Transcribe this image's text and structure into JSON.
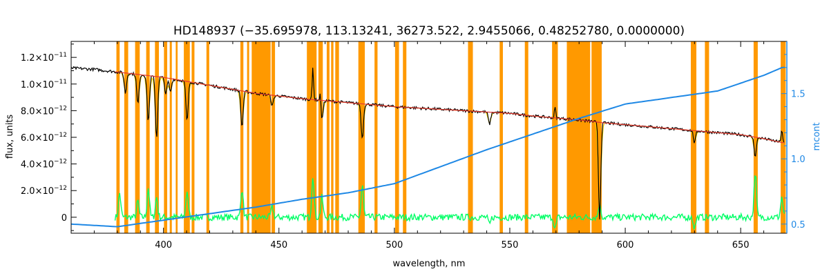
{
  "chart_data": {
    "type": "line",
    "title": "HD148937    (−35.695978, 113.13241, 36273.522, 2.9455066, 0.48252780, 0.0000000)",
    "xlabel": "wavelength, nm",
    "ylabel": "flux, units",
    "y2label": "mcont",
    "xlim": [
      360,
      670
    ],
    "ylim": [
      -1.2e-12,
      1.32e-11
    ],
    "y2lim": [
      0.43,
      1.9
    ],
    "x_ticks": [
      400,
      450,
      500,
      550,
      600,
      650
    ],
    "y_ticks": [
      {
        "value": 0,
        "label": "0",
        "sup": ""
      },
      {
        "value": 2e-12,
        "label": "2.0×10",
        "sup": "−12"
      },
      {
        "value": 4e-12,
        "label": "4.0×10",
        "sup": "−12"
      },
      {
        "value": 6e-12,
        "label": "6.0×10",
        "sup": "−12"
      },
      {
        "value": 8e-12,
        "label": "8.0×10",
        "sup": "−12"
      },
      {
        "value": 1e-11,
        "label": "1.0×10",
        "sup": "−11"
      },
      {
        "value": 1.2e-11,
        "label": "1.2×10",
        "sup": "−11"
      }
    ],
    "y2_ticks": [
      {
        "value": 0.5,
        "label": "0.5"
      },
      {
        "value": 1.0,
        "label": "1.0"
      },
      {
        "value": 1.5,
        "label": "1.5"
      }
    ],
    "masked_bands_nm": [
      [
        379.6,
        381.0
      ],
      [
        383.0,
        384.7
      ],
      [
        387.7,
        389.7
      ],
      [
        392.5,
        394.0
      ],
      [
        396.3,
        398.0
      ],
      [
        400.2,
        401.6
      ],
      [
        402.7,
        403.6
      ],
      [
        405.3,
        406.1
      ],
      [
        408.8,
        411.4
      ],
      [
        412.2,
        413.4
      ],
      [
        418.6,
        419.8
      ],
      [
        433.3,
        434.6
      ],
      [
        436.2,
        437.1
      ],
      [
        438.2,
        446.4
      ],
      [
        446.8,
        448.3
      ],
      [
        462.1,
        466.3
      ],
      [
        467.1,
        469.0
      ],
      [
        470.7,
        471.9
      ],
      [
        472.6,
        473.6
      ],
      [
        474.4,
        476.0
      ],
      [
        484.4,
        487.2
      ],
      [
        491.4,
        492.7
      ],
      [
        500.3,
        502.0
      ],
      [
        503.7,
        505.2
      ],
      [
        531.9,
        534.0
      ],
      [
        545.6,
        547.0
      ],
      [
        556.5,
        558.0
      ],
      [
        568.3,
        570.8
      ],
      [
        574.7,
        584.8
      ],
      [
        585.4,
        589.8
      ],
      [
        628.4,
        630.8
      ],
      [
        634.5,
        636.3
      ],
      [
        655.6,
        657.4
      ],
      [
        667.3,
        669.5
      ]
    ],
    "colors": {
      "observed": "#000000",
      "model": "#e53935",
      "model_lines": "#f5d000",
      "residual": "#00ff66",
      "continuum": "#1e88e5",
      "mask": "#ff9900"
    },
    "series": [
      {
        "role": "observed",
        "x": [
          360,
          370,
          380,
          390,
          400,
          410,
          420,
          430,
          440,
          450,
          460,
          470,
          480,
          490,
          500,
          510,
          520,
          530,
          540,
          550,
          560,
          570,
          580,
          590,
          600,
          610,
          620,
          630,
          640,
          650,
          660,
          668
        ],
        "y": [
          1.12e-11,
          1.11e-11,
          1.09e-11,
          1.07e-11,
          1.05e-11,
          1.02e-11,
          9.9e-12,
          9.6e-12,
          9.3e-12,
          9.1e-12,
          8.9e-12,
          8.75e-12,
          8.6e-12,
          8.45e-12,
          8.3e-12,
          8.2e-12,
          8.1e-12,
          8e-12,
          7.9e-12,
          7.8e-12,
          7.6e-12,
          7.45e-12,
          7.3e-12,
          7.1e-12,
          6.95e-12,
          6.8e-12,
          6.65e-12,
          6.5e-12,
          6.35e-12,
          6.2e-12,
          5.9e-12,
          5.6e-12
        ]
      },
      {
        "role": "absorption_lines",
        "lines": [
          {
            "x": 383.5,
            "depth": 1.5e-12
          },
          {
            "x": 388.9,
            "depth": 2.2e-12
          },
          {
            "x": 393.4,
            "depth": 3.4e-12
          },
          {
            "x": 397.0,
            "depth": 4.6e-12
          },
          {
            "x": 401.0,
            "depth": 1.2e-12
          },
          {
            "x": 403.0,
            "depth": 1e-12
          },
          {
            "x": 410.2,
            "depth": 3e-12
          },
          {
            "x": 434.0,
            "depth": 2.7e-12
          },
          {
            "x": 447.1,
            "depth": 8e-13
          },
          {
            "x": 468.6,
            "depth": 1.5e-12
          },
          {
            "x": 486.1,
            "depth": 2.6e-12
          },
          {
            "x": 541.2,
            "depth": 9e-13
          },
          {
            "x": 588.9,
            "depth": 7.2e-12
          },
          {
            "x": 630.0,
            "depth": 9e-13
          },
          {
            "x": 656.3,
            "depth": 1.4e-12
          }
        ],
        "emission_lines": [
          {
            "x": 464.7,
            "height": 2.4e-12
          },
          {
            "x": 468.0,
            "height": 1e-12
          },
          {
            "x": 569.6,
            "height": 8e-13
          },
          {
            "x": 667.8,
            "height": 1e-12
          }
        ]
      },
      {
        "role": "continuum",
        "x": [
          360,
          380,
          400,
          420,
          440,
          460,
          480,
          500,
          520,
          540,
          560,
          580,
          600,
          620,
          640,
          660,
          668
        ],
        "y": [
          0.5,
          0.48,
          0.53,
          0.58,
          0.63,
          0.69,
          0.74,
          0.81,
          0.94,
          1.07,
          1.19,
          1.31,
          1.42,
          1.47,
          1.52,
          1.64,
          1.7
        ]
      },
      {
        "role": "residual",
        "x": [
          381,
          388.9,
          393.4,
          397,
          410.2,
          434,
          447.1,
          464.7,
          468.6,
          486.1,
          541.2,
          569.6,
          588.9,
          630,
          656.3,
          667.8
        ],
        "y": [
          1.8e-12,
          1.2e-12,
          2.2e-12,
          1.5e-12,
          2e-12,
          2.2e-12,
          8e-13,
          3.2e-12,
          1.5e-12,
          2.4e-12,
          -6e-13,
          -9e-13,
          1.1e-12,
          -8e-13,
          3.4e-12,
          1.5e-12
        ]
      }
    ]
  }
}
